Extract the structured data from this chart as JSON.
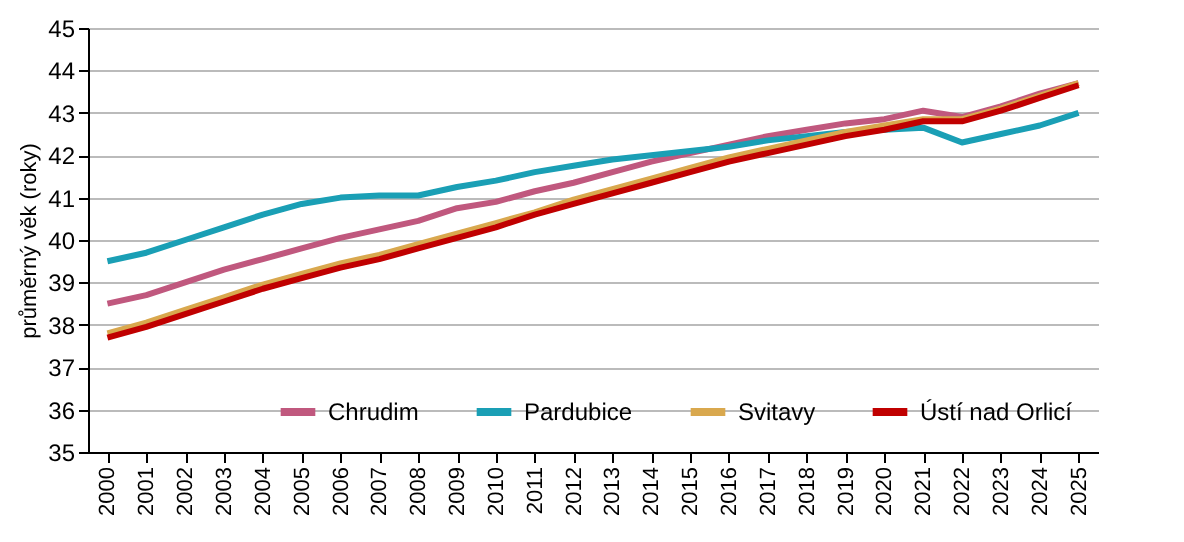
{
  "chart_data": {
    "type": "line",
    "ylabel": "průměrný věk (roky)",
    "categories": [
      "2000",
      "2001",
      "2002",
      "2003",
      "2004",
      "2005",
      "2006",
      "2007",
      "2008",
      "2009",
      "2010",
      "2011",
      "2012",
      "2013",
      "2014",
      "2015",
      "2016",
      "2017",
      "2018",
      "2019",
      "2020",
      "2021",
      "2022",
      "2023",
      "2024",
      "2025"
    ],
    "series": [
      {
        "name": "Chrudim",
        "color": "#c0587e",
        "values": [
          38.5,
          38.7,
          39.0,
          39.3,
          39.55,
          39.8,
          40.05,
          40.25,
          40.45,
          40.75,
          40.9,
          41.15,
          41.35,
          41.6,
          41.85,
          42.05,
          42.25,
          42.45,
          42.6,
          42.75,
          42.85,
          43.05,
          42.9,
          43.15,
          43.45,
          43.7
        ]
      },
      {
        "name": "Pardubice",
        "color": "#1a9fb5",
        "values": [
          39.5,
          39.7,
          40.0,
          40.3,
          40.6,
          40.85,
          41.0,
          41.05,
          41.05,
          41.25,
          41.4,
          41.6,
          41.75,
          41.9,
          42.0,
          42.1,
          42.2,
          42.35,
          42.45,
          42.55,
          42.6,
          42.65,
          42.3,
          42.5,
          42.7,
          43.0
        ]
      },
      {
        "name": "Svitavy",
        "color": "#d9a84e",
        "values": [
          37.8,
          38.05,
          38.35,
          38.65,
          38.95,
          39.2,
          39.45,
          39.65,
          39.9,
          40.15,
          40.4,
          40.65,
          40.95,
          41.2,
          41.45,
          41.7,
          41.95,
          42.15,
          42.35,
          42.55,
          42.7,
          42.85,
          42.85,
          43.1,
          43.4,
          43.7
        ]
      },
      {
        "name": "Ústí nad Orlicí",
        "color": "#c00000",
        "values": [
          37.7,
          37.95,
          38.25,
          38.55,
          38.85,
          39.1,
          39.35,
          39.55,
          39.8,
          40.05,
          40.3,
          40.6,
          40.85,
          41.1,
          41.35,
          41.6,
          41.85,
          42.05,
          42.25,
          42.45,
          42.6,
          42.8,
          42.8,
          43.05,
          43.35,
          43.65
        ]
      }
    ],
    "ylim": [
      35,
      45
    ],
    "yticks": [
      35,
      36,
      37,
      38,
      39,
      40,
      41,
      42,
      43,
      44,
      45
    ],
    "grid": "y",
    "legend": "bottom right",
    "line_style": "solid",
    "marker": "none"
  }
}
